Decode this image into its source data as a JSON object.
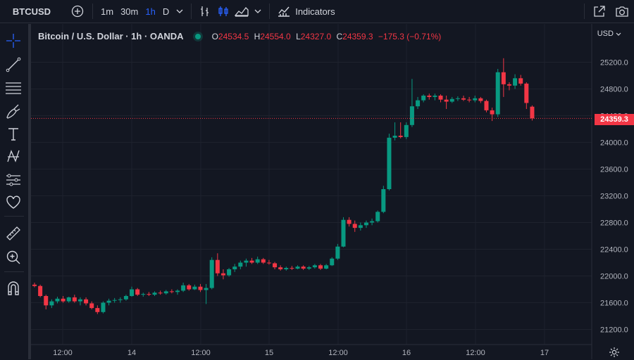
{
  "topbar": {
    "symbol": "BTCUSD",
    "timeframes": [
      {
        "label": "1m",
        "active": false
      },
      {
        "label": "30m",
        "active": false
      },
      {
        "label": "1h",
        "active": true
      },
      {
        "label": "D",
        "active": false
      }
    ],
    "indicators_label": "Indicators"
  },
  "legend": {
    "title": "Bitcoin / U.S. Dollar · 1h · OANDA",
    "o_key": "O",
    "o_val": "24534.5",
    "h_key": "H",
    "h_val": "24554.0",
    "l_key": "L",
    "l_val": "24327.0",
    "c_key": "C",
    "c_val": "24359.3",
    "change": "−175.3 (−0.71%)"
  },
  "price_axis": {
    "currency": "USD",
    "current_price": "24359.3"
  },
  "colors": {
    "up": "#089981",
    "down": "#f23645",
    "accent": "#2962ff",
    "bg": "#131722",
    "grid": "#1e222d"
  },
  "chart_data": {
    "type": "candlestick",
    "y_ticks": [
      "21200.0",
      "21600.0",
      "22000.0",
      "22400.0",
      "22800.0",
      "23200.0",
      "23600.0",
      "24000.0",
      "24400.0",
      "24800.0",
      "25200.0"
    ],
    "x_ticks": [
      "12:00",
      "14",
      "12:00",
      "15",
      "12:00",
      "16",
      "12:00",
      "17"
    ],
    "ylim": [
      21000,
      25450
    ],
    "last_price": 24359.3,
    "candles": [
      [
        21870,
        21900,
        21830,
        21850
      ],
      [
        21850,
        21870,
        21680,
        21700
      ],
      [
        21700,
        21720,
        21500,
        21560
      ],
      [
        21560,
        21650,
        21520,
        21620
      ],
      [
        21620,
        21690,
        21590,
        21660
      ],
      [
        21660,
        21700,
        21600,
        21620
      ],
      [
        21620,
        21690,
        21600,
        21680
      ],
      [
        21680,
        21720,
        21600,
        21620
      ],
      [
        21620,
        21680,
        21560,
        21650
      ],
      [
        21650,
        21680,
        21560,
        21590
      ],
      [
        21590,
        21620,
        21500,
        21520
      ],
      [
        21520,
        21560,
        21430,
        21460
      ],
      [
        21460,
        21620,
        21440,
        21600
      ],
      [
        21600,
        21660,
        21560,
        21630
      ],
      [
        21630,
        21670,
        21600,
        21640
      ],
      [
        21640,
        21680,
        21600,
        21650
      ],
      [
        21650,
        21720,
        21630,
        21700
      ],
      [
        21700,
        21840,
        21690,
        21800
      ],
      [
        21800,
        21820,
        21700,
        21720
      ],
      [
        21720,
        21750,
        21690,
        21730
      ],
      [
        21730,
        21760,
        21700,
        21720
      ],
      [
        21720,
        21770,
        21700,
        21750
      ],
      [
        21750,
        21780,
        21720,
        21740
      ],
      [
        21740,
        21790,
        21720,
        21770
      ],
      [
        21770,
        21800,
        21740,
        21760
      ],
      [
        21760,
        21800,
        21720,
        21780
      ],
      [
        21780,
        21900,
        21760,
        21860
      ],
      [
        21860,
        21880,
        21780,
        21800
      ],
      [
        21800,
        21870,
        21790,
        21840
      ],
      [
        21840,
        21880,
        21760,
        21790
      ],
      [
        21790,
        21880,
        21580,
        21820
      ],
      [
        21820,
        22280,
        21800,
        22240
      ],
      [
        22240,
        22340,
        22000,
        22040
      ],
      [
        22040,
        22100,
        21950,
        22010
      ],
      [
        22010,
        22120,
        21990,
        22100
      ],
      [
        22100,
        22180,
        22060,
        22140
      ],
      [
        22140,
        22230,
        22100,
        22200
      ],
      [
        22200,
        22260,
        22140,
        22230
      ],
      [
        22230,
        22270,
        22180,
        22200
      ],
      [
        22200,
        22290,
        22180,
        22250
      ],
      [
        22250,
        22270,
        22180,
        22200
      ],
      [
        22200,
        22240,
        22170,
        22190
      ],
      [
        22190,
        22210,
        22100,
        22130
      ],
      [
        22130,
        22160,
        22080,
        22100
      ],
      [
        22100,
        22140,
        22080,
        22120
      ],
      [
        22120,
        22150,
        22090,
        22110
      ],
      [
        22110,
        22160,
        22100,
        22140
      ],
      [
        22140,
        22160,
        22090,
        22110
      ],
      [
        22110,
        22150,
        22090,
        22130
      ],
      [
        22130,
        22180,
        22110,
        22160
      ],
      [
        22160,
        22180,
        22090,
        22110
      ],
      [
        22110,
        22180,
        22100,
        22160
      ],
      [
        22160,
        22280,
        22150,
        22260
      ],
      [
        22260,
        22480,
        22240,
        22440
      ],
      [
        22440,
        22880,
        22430,
        22840
      ],
      [
        22840,
        22880,
        22740,
        22780
      ],
      [
        22780,
        22830,
        22660,
        22720
      ],
      [
        22720,
        22800,
        22680,
        22760
      ],
      [
        22760,
        22830,
        22720,
        22800
      ],
      [
        22800,
        22860,
        22760,
        22820
      ],
      [
        22820,
        22980,
        22800,
        22960
      ],
      [
        22960,
        23350,
        22940,
        23300
      ],
      [
        23300,
        24130,
        23280,
        24070
      ],
      [
        24070,
        24300,
        24030,
        24100
      ],
      [
        24100,
        24300,
        24060,
        24080
      ],
      [
        24080,
        24300,
        24050,
        24260
      ],
      [
        24260,
        24950,
        24230,
        24540
      ],
      [
        24540,
        24680,
        24500,
        24630
      ],
      [
        24630,
        24720,
        24600,
        24700
      ],
      [
        24700,
        24730,
        24640,
        24680
      ],
      [
        24680,
        24730,
        24630,
        24700
      ],
      [
        24700,
        24720,
        24600,
        24640
      ],
      [
        24640,
        24700,
        24500,
        24610
      ],
      [
        24610,
        24680,
        24590,
        24650
      ],
      [
        24650,
        24690,
        24620,
        24660
      ],
      [
        24660,
        24700,
        24620,
        24640
      ],
      [
        24640,
        24680,
        24600,
        24630
      ],
      [
        24630,
        24700,
        24600,
        24660
      ],
      [
        24660,
        24680,
        24590,
        24620
      ],
      [
        24620,
        24640,
        24450,
        24480
      ],
      [
        24480,
        24520,
        24320,
        24420
      ],
      [
        24420,
        25100,
        24380,
        25050
      ],
      [
        25050,
        25260,
        24680,
        24870
      ],
      [
        24870,
        24900,
        24780,
        24850
      ],
      [
        24850,
        25020,
        24800,
        24960
      ],
      [
        24960,
        25010,
        24850,
        24880
      ],
      [
        24880,
        24900,
        24500,
        24590
      ],
      [
        24534.5,
        24554,
        24327,
        24359.3
      ]
    ]
  }
}
